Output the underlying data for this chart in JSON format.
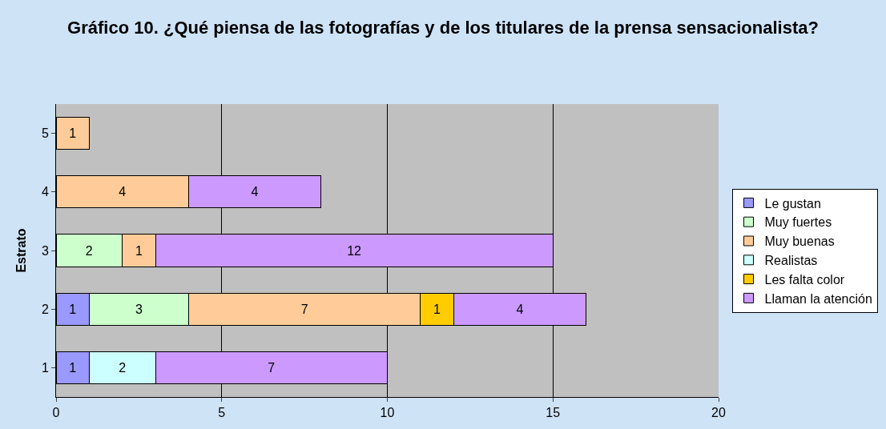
{
  "chart_data": {
    "type": "bar",
    "orientation": "horizontal",
    "stacked": true,
    "title": "Gráfico 10. ¿Qué piensa de las fotografías y de los titulares de la prensa sensacionalista?",
    "ylabel": "Estrato",
    "categories": [
      "5",
      "4",
      "3",
      "2",
      "1"
    ],
    "series": [
      {
        "name": "Le gustan",
        "color": "#9999ff",
        "values": [
          null,
          null,
          null,
          1,
          1
        ]
      },
      {
        "name": "Muy fuertes",
        "color": "#ccffcc",
        "values": [
          null,
          null,
          2,
          3,
          null
        ]
      },
      {
        "name": "Muy buenas",
        "color": "#ffcc99",
        "values": [
          1,
          4,
          1,
          7,
          null
        ]
      },
      {
        "name": "Realistas",
        "color": "#ccffff",
        "values": [
          null,
          null,
          null,
          null,
          2
        ]
      },
      {
        "name": "Les falta color",
        "color": "#ffcc00",
        "values": [
          null,
          null,
          null,
          1,
          null
        ]
      },
      {
        "name": "Llaman la atención",
        "color": "#cc99ff",
        "values": [
          null,
          4,
          12,
          4,
          7
        ]
      }
    ],
    "xlim": [
      0,
      20
    ],
    "xticks": [
      0,
      5,
      10,
      15,
      20
    ],
    "grid": "x",
    "legend": "right",
    "data_labels": true
  }
}
